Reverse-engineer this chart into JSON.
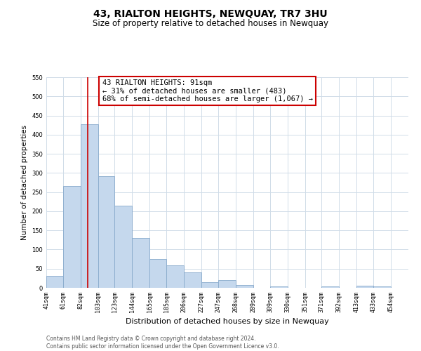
{
  "title": "43, RIALTON HEIGHTS, NEWQUAY, TR7 3HU",
  "subtitle": "Size of property relative to detached houses in Newquay",
  "xlabel": "Distribution of detached houses by size in Newquay",
  "ylabel": "Number of detached properties",
  "bar_left_edges": [
    41,
    61,
    82,
    103,
    123,
    144,
    165,
    185,
    206,
    227,
    247,
    268,
    289,
    309,
    330,
    351,
    371,
    392,
    413,
    433
  ],
  "bar_heights": [
    32,
    265,
    428,
    292,
    215,
    130,
    76,
    59,
    40,
    15,
    20,
    8,
    0,
    4,
    0,
    0,
    4,
    0,
    5,
    4
  ],
  "bar_widths": [
    20,
    21,
    21,
    20,
    21,
    21,
    20,
    21,
    21,
    20,
    21,
    21,
    20,
    21,
    21,
    20,
    21,
    21,
    20,
    21
  ],
  "tick_labels": [
    "41sqm",
    "61sqm",
    "82sqm",
    "103sqm",
    "123sqm",
    "144sqm",
    "165sqm",
    "185sqm",
    "206sqm",
    "227sqm",
    "247sqm",
    "268sqm",
    "289sqm",
    "309sqm",
    "330sqm",
    "351sqm",
    "371sqm",
    "392sqm",
    "413sqm",
    "433sqm",
    "454sqm"
  ],
  "tick_positions": [
    41,
    61,
    82,
    103,
    123,
    144,
    165,
    185,
    206,
    227,
    247,
    268,
    289,
    309,
    330,
    351,
    371,
    392,
    413,
    433,
    454
  ],
  "bar_color": "#c5d8ed",
  "bar_edge_color": "#88aacc",
  "highlight_line_x": 91,
  "highlight_line_color": "#cc0000",
  "annotation_line1": "43 RIALTON HEIGHTS: 91sqm",
  "annotation_line2": "← 31% of detached houses are smaller (483)",
  "annotation_line3": "68% of semi-detached houses are larger (1,067) →",
  "annotation_box_color": "#ffffff",
  "annotation_box_edge": "#cc0000",
  "ylim": [
    0,
    550
  ],
  "xlim": [
    41,
    475
  ],
  "yticks": [
    0,
    50,
    100,
    150,
    200,
    250,
    300,
    350,
    400,
    450,
    500,
    550
  ],
  "grid_color": "#d0dce8",
  "footer_text": "Contains HM Land Registry data © Crown copyright and database right 2024.\nContains public sector information licensed under the Open Government Licence v3.0.",
  "bg_color": "#ffffff",
  "title_fontsize": 10,
  "subtitle_fontsize": 8.5,
  "ylabel_fontsize": 7.5,
  "xlabel_fontsize": 8,
  "tick_fontsize": 6,
  "footer_fontsize": 5.5,
  "annotation_fontsize": 7.5
}
